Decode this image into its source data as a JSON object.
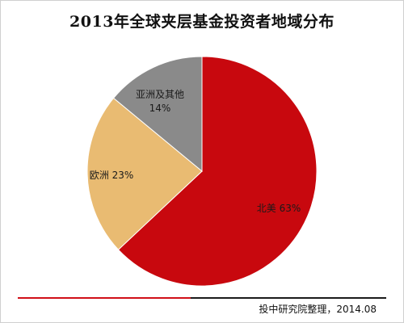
{
  "chart_data": {
    "type": "pie",
    "title": "2013年全球夹层基金投资者地域分布",
    "slices": [
      {
        "label": "北美",
        "value": 63,
        "display": "北美 63%",
        "color": "#c8080e"
      },
      {
        "label": "欧洲",
        "value": 23,
        "display": "欧洲 23%",
        "color": "#e9bb72"
      },
      {
        "label": "亚洲及其他",
        "value": 14,
        "display_line1": "亚洲及其他",
        "display_line2": "14%",
        "color": "#8a8a8a"
      }
    ],
    "start": "12 o'clock",
    "direction": "clockwise"
  },
  "footer": {
    "source": "投中研究院整理，2014.08"
  }
}
